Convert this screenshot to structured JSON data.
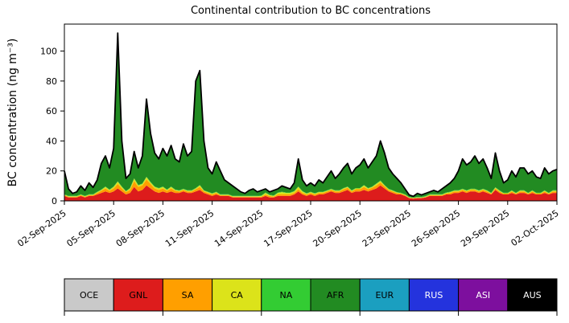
{
  "title": "Continental contribution to BC concentrations",
  "ylabel": "BC concentration (ng m⁻³)",
  "chart_data": {
    "type": "area",
    "stacked": true,
    "title": "Continental contribution to BC concentrations",
    "ylabel": "BC concentration (ng m⁻³)",
    "x_start": "02-Sep-2025",
    "x_end": "02-Oct-2025",
    "points_per_day": 4,
    "n_points": 121,
    "ylim": [
      0,
      118
    ],
    "yticks": [
      0,
      20,
      40,
      60,
      80,
      100
    ],
    "grid": false,
    "total_line_color": "#000000",
    "legend_position": "bottom",
    "x_tick_labels": [
      "02-Sep-2025",
      "05-Sep-2025",
      "08-Sep-2025",
      "11-Sep-2025",
      "14-Sep-2025",
      "17-Sep-2025",
      "20-Sep-2025",
      "23-Sep-2025",
      "26-Sep-2025",
      "29-Sep-2025",
      "02-Oct-2025"
    ],
    "x_tick_point_indices": [
      0,
      12,
      24,
      36,
      48,
      60,
      72,
      84,
      96,
      108,
      120
    ],
    "series": [
      {
        "name": "OCE",
        "color": "#c9c9c9",
        "label_color": "#000000",
        "values": 0.3
      },
      {
        "name": "GNL",
        "color": "#dd1c1c",
        "label_color": "#000000",
        "values": [
          3,
          2,
          2,
          2,
          3,
          2,
          3,
          3,
          4,
          5,
          6,
          5,
          6,
          8,
          6,
          4,
          5,
          9,
          6,
          7,
          10,
          8,
          6,
          5,
          6,
          5,
          6,
          5,
          5,
          6,
          5,
          5,
          6,
          7,
          5,
          4,
          3,
          4,
          3,
          3,
          3,
          2,
          2,
          2,
          2,
          2,
          2,
          2,
          2,
          3,
          2,
          2,
          3,
          3,
          3,
          3,
          4,
          6,
          4,
          3,
          4,
          3,
          4,
          4,
          5,
          6,
          5,
          5,
          6,
          7,
          5,
          6,
          6,
          7,
          6,
          7,
          8,
          10,
          8,
          6,
          5,
          4,
          4,
          3,
          1.5,
          1.2,
          1.5,
          1.5,
          2,
          3,
          3,
          3,
          3,
          4,
          4,
          5,
          5,
          6,
          5,
          6,
          6,
          5,
          6,
          5,
          4,
          7,
          5,
          4,
          4,
          5,
          4,
          5,
          5,
          4,
          5,
          4,
          4,
          5,
          4,
          5,
          5
        ]
      },
      {
        "name": "SA",
        "color": "#ff9f00",
        "label_color": "#000000",
        "values": [
          0.5,
          0.5,
          0.5,
          0.5,
          0.5,
          0.5,
          0.5,
          0.5,
          1,
          1.5,
          2,
          1.5,
          2,
          3,
          2,
          1.5,
          2,
          4,
          3,
          3,
          4,
          3,
          2,
          2,
          2,
          1.5,
          2,
          1.5,
          1,
          1,
          1,
          1,
          1.5,
          2,
          1,
          1,
          1,
          1,
          0.5,
          0.5,
          0.5,
          0.5,
          0.5,
          0.5,
          0.5,
          0.5,
          0.5,
          0.5,
          0.5,
          1,
          1,
          0.5,
          1,
          1,
          1,
          1,
          1,
          1.5,
          1,
          1,
          1,
          1,
          1,
          1,
          1,
          1,
          1,
          1,
          1.5,
          1.5,
          1,
          1.5,
          1.5,
          2,
          1.5,
          1.5,
          2,
          2,
          1.5,
          1,
          1,
          1,
          0.5,
          0.5,
          0.3,
          0.3,
          0.3,
          0.3,
          0.3,
          0.5,
          0.5,
          0.5,
          0.5,
          0.5,
          1,
          1,
          1,
          1,
          1,
          1,
          1,
          1,
          1,
          1,
          0.5,
          1,
          1,
          0.5,
          0.5,
          1,
          0.5,
          1,
          1,
          0.5,
          1,
          0.5,
          0.5,
          1,
          0.5,
          1,
          1
        ]
      },
      {
        "name": "CA",
        "color": "#dce31a",
        "label_color": "#000000",
        "values": [
          0.3,
          0.3,
          0.3,
          0.3,
          0.3,
          0.3,
          0.3,
          0.3,
          0.5,
          0.5,
          1,
          0.5,
          1,
          1.5,
          1,
          0.5,
          1,
          1.5,
          1,
          1,
          1.5,
          1,
          1,
          1,
          1,
          0.5,
          1,
          0.5,
          0.5,
          0.5,
          0.5,
          0.5,
          0.5,
          1,
          0.5,
          0.5,
          0.5,
          0.5,
          0.3,
          0.3,
          0.3,
          0.3,
          0.3,
          0.3,
          0.3,
          0.3,
          0.3,
          0.3,
          0.5,
          1,
          0.5,
          0.5,
          1,
          1.5,
          1,
          1,
          1,
          1.5,
          1,
          0.5,
          0.5,
          0.5,
          0.5,
          0.5,
          0.5,
          0.5,
          0.5,
          0.5,
          0.5,
          0.5,
          0.5,
          0.5,
          0.5,
          1,
          0.5,
          0.5,
          1,
          1,
          0.5,
          0.5,
          0.5,
          0.3,
          0.3,
          0.3,
          0.2,
          0.2,
          0.2,
          0.2,
          0.3,
          0.3,
          0.3,
          0.3,
          0.3,
          0.5,
          0.5,
          0.5,
          0.5,
          0.5,
          0.5,
          0.5,
          0.5,
          0.5,
          0.5,
          0.5,
          0.3,
          0.5,
          0.5,
          0.3,
          0.3,
          0.5,
          0.3,
          0.5,
          0.5,
          0.3,
          0.5,
          0.3,
          0.3,
          0.5,
          0.3,
          0.5,
          0.5
        ]
      },
      {
        "name": "NA",
        "color": "#33cc33",
        "label_color": "#000000",
        "values": 0.3
      },
      {
        "name": "AFR",
        "color": "#228b22",
        "label_color": "#000000",
        "values": [
          15.2,
          4.2,
          1.2,
          2.2,
          5.2,
          3.2,
          7.2,
          4.2,
          7.5,
          17,
          20,
          14,
          25,
          98.5,
          30,
          8,
          9,
          17.5,
          11,
          18,
          51.5,
          32,
          22,
          19,
          25,
          22,
          27,
          20,
          18.5,
          29.5,
          22.5,
          25.5,
          71,
          76,
          32.5,
          15.5,
          12.5,
          19.5,
          15.2,
          9.2,
          7.2,
          6.2,
          4.2,
          2.2,
          1.2,
          3.2,
          4.2,
          2.2,
          3,
          2,
          1.5,
          3,
          2,
          3.5,
          3,
          2,
          5,
          18,
          7,
          4.5,
          5.5,
          4.5,
          7.5,
          5.5,
          8.5,
          11.5,
          7.5,
          10.5,
          13,
          15,
          10.5,
          13,
          15,
          17,
          13,
          16,
          18,
          26,
          21,
          13.5,
          10.5,
          8.7,
          6.2,
          3.2,
          1,
          0.3,
          2,
          1,
          1.4,
          1.2,
          2.2,
          1.2,
          3.2,
          4,
          5.5,
          7.5,
          12.5,
          19.5,
          16.5,
          17.5,
          21.5,
          17.5,
          19.5,
          14.5,
          9.2,
          22.5,
          12.5,
          6.2,
          8.2,
          12.5,
          10.2,
          14.5,
          14.5,
          12.2,
          12.5,
          10.2,
          9.2,
          14.5,
          12.2,
          12.5,
          13.5
        ]
      },
      {
        "name": "EUR",
        "color": "#1b9fc0",
        "label_color": "#000000",
        "values": 0.1
      },
      {
        "name": "RUS",
        "color": "#2433dd",
        "label_color": "#ffffff",
        "values": 0.1
      },
      {
        "name": "ASI",
        "color": "#7d0f9e",
        "label_color": "#ffffff",
        "values": 0.1
      },
      {
        "name": "AUS",
        "color": "#000000",
        "label_color": "#ffffff",
        "values": 0.1
      }
    ]
  }
}
